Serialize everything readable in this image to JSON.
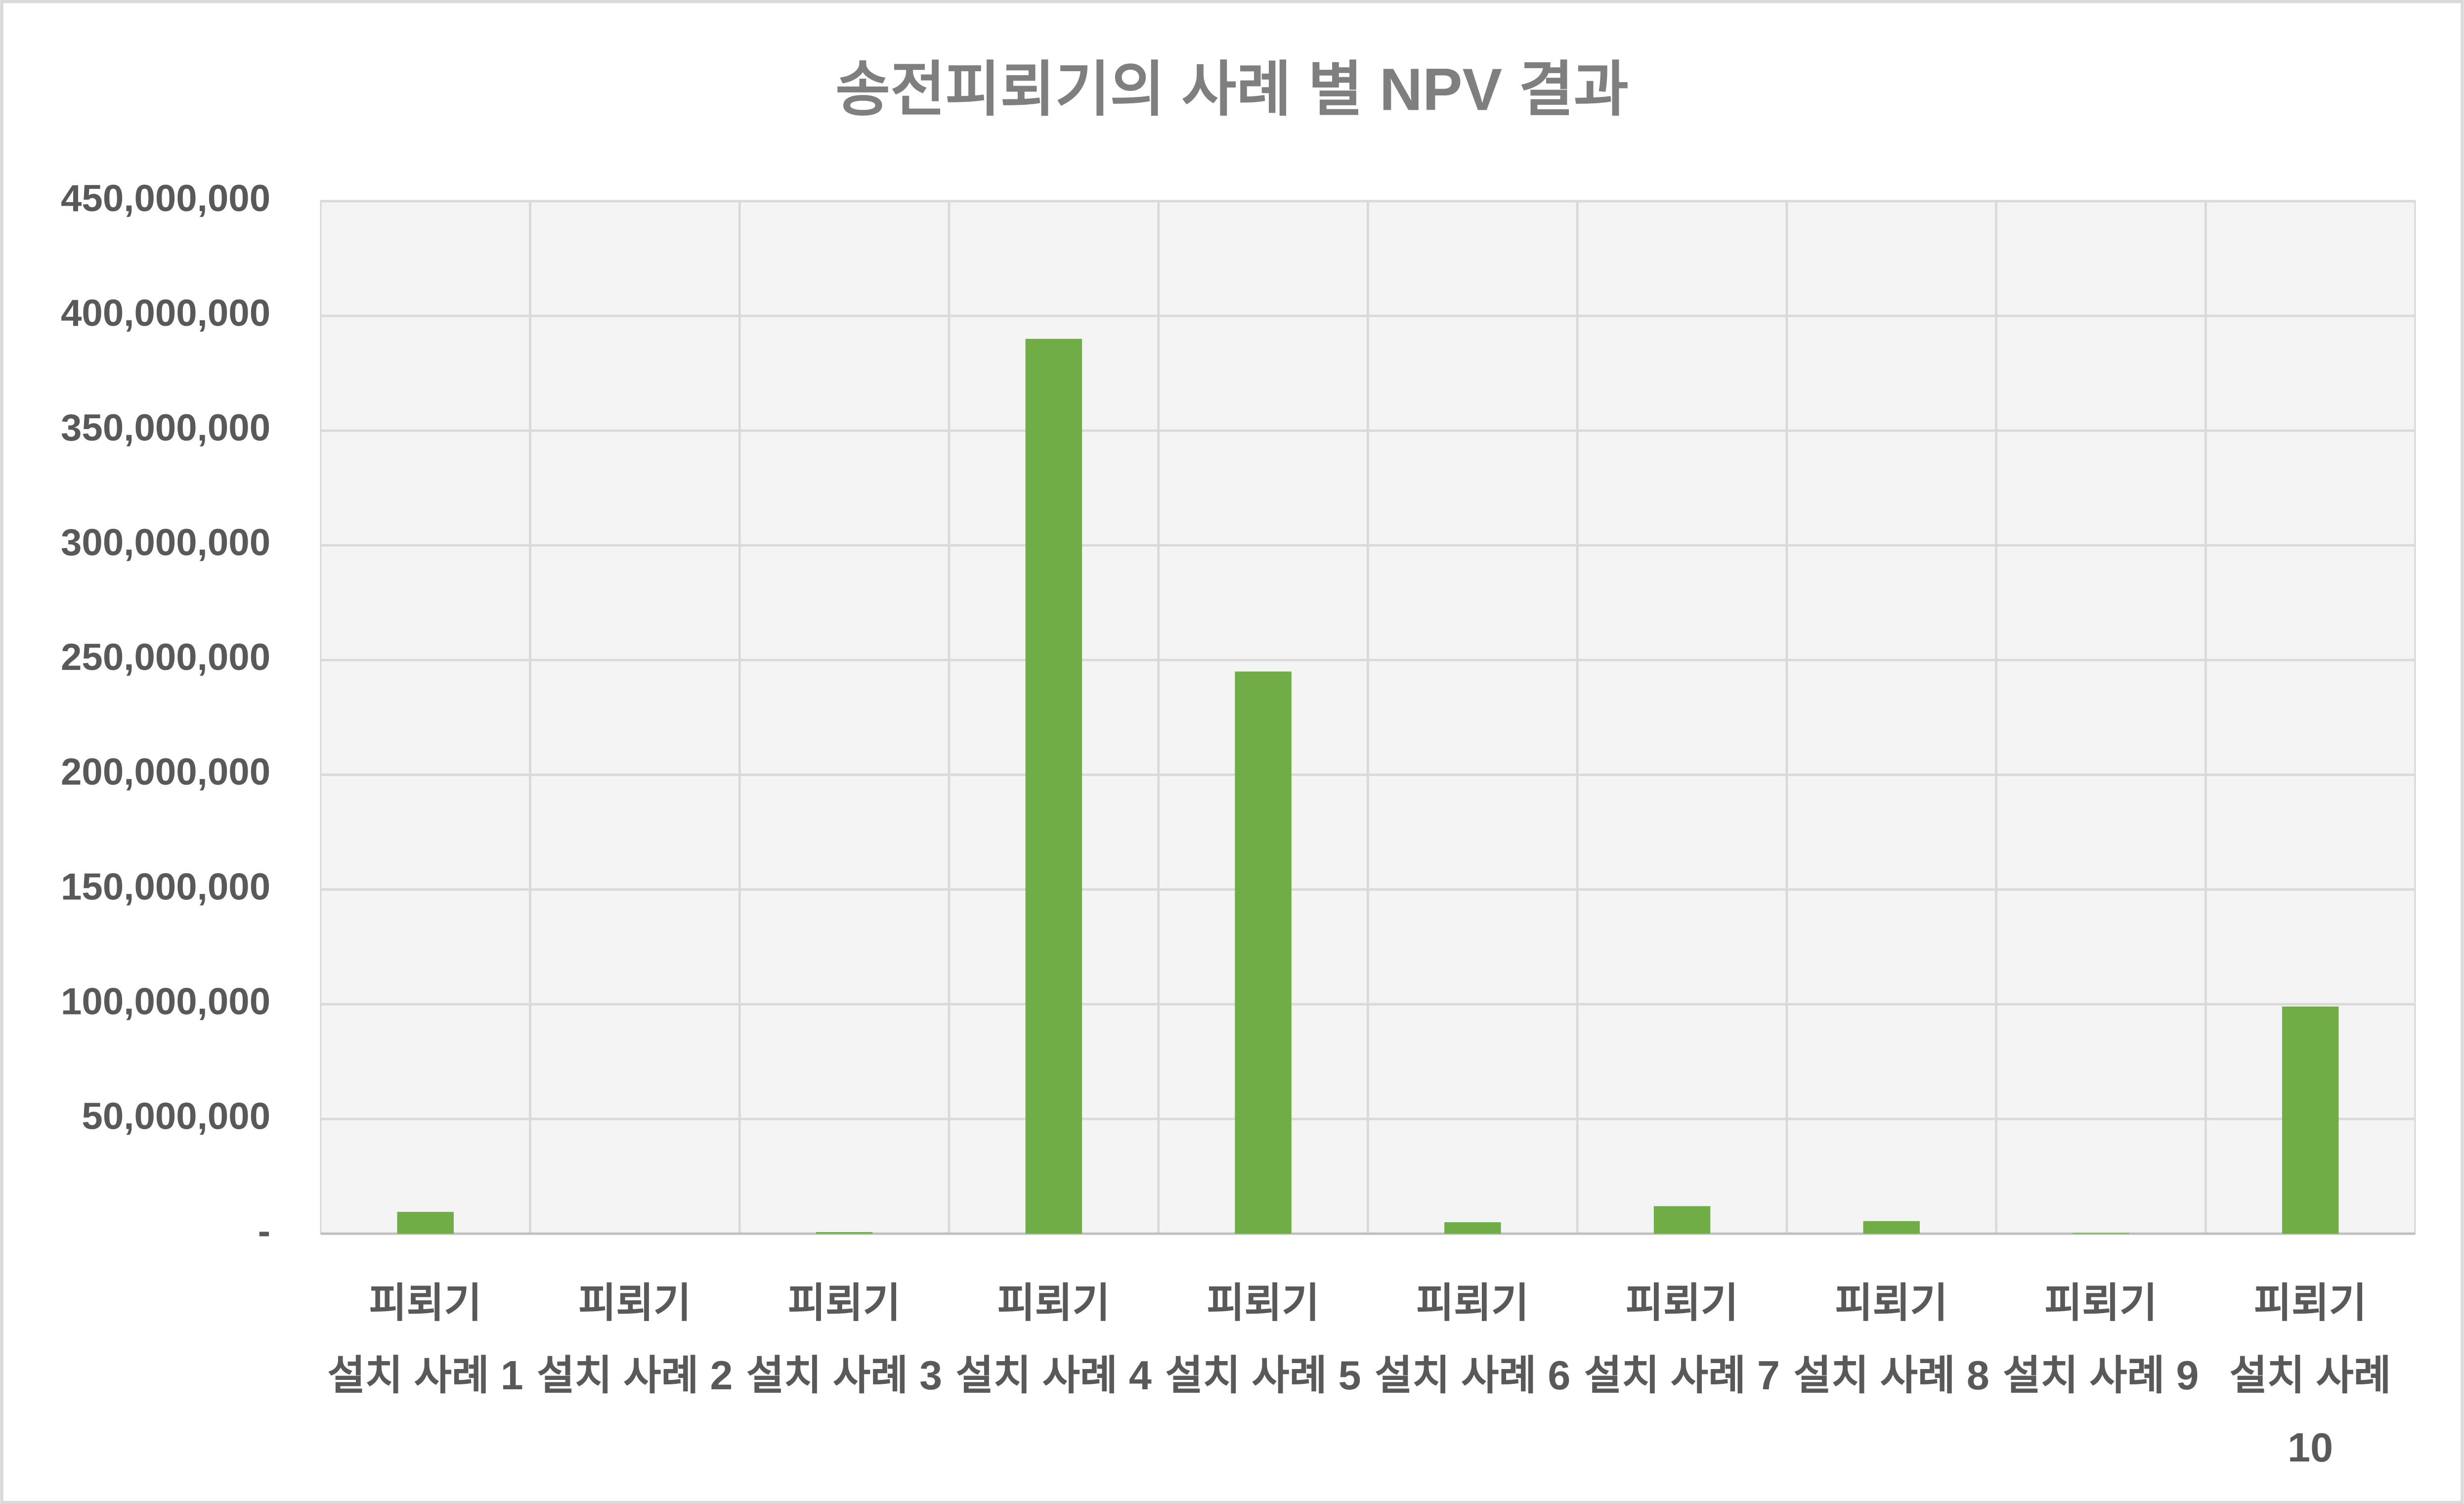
{
  "chart_data": {
    "type": "bar",
    "title": "송전피뢰기의 사례 별 NPV 결과",
    "categories": [
      "피뢰기 설치 사례 1",
      "피뢰기 설치 사례 2",
      "피뢰기 설치 사례 3",
      "피뢰기 설치 사례 4",
      "피뢰기 설치 사례 5",
      "피뢰기 설치 사례 6",
      "피뢰기 설치 사례 7",
      "피뢰기 설치 사례 8",
      "피뢰기 설치 사례 9",
      "피뢰기 설치 사례 10"
    ],
    "values": [
      9500000,
      0,
      700000,
      390000000,
      245000000,
      5000000,
      12000000,
      5500000,
      300000,
      99000000
    ],
    "color": "#70ad47",
    "ylim": [
      0,
      450000000
    ],
    "yticks": [
      {
        "value": 0,
        "label": "-"
      },
      {
        "value": 50000000,
        "label": "50,000,000"
      },
      {
        "value": 100000000,
        "label": "100,000,000"
      },
      {
        "value": 150000000,
        "label": "150,000,000"
      },
      {
        "value": 200000000,
        "label": "200,000,000"
      },
      {
        "value": 250000000,
        "label": "250,000,000"
      },
      {
        "value": 300000000,
        "label": "300,000,000"
      },
      {
        "value": 350000000,
        "label": "350,000,000"
      },
      {
        "value": 400000000,
        "label": "400,000,000"
      },
      {
        "value": 450000000,
        "label": "450,000,000"
      }
    ],
    "grid": true
  }
}
